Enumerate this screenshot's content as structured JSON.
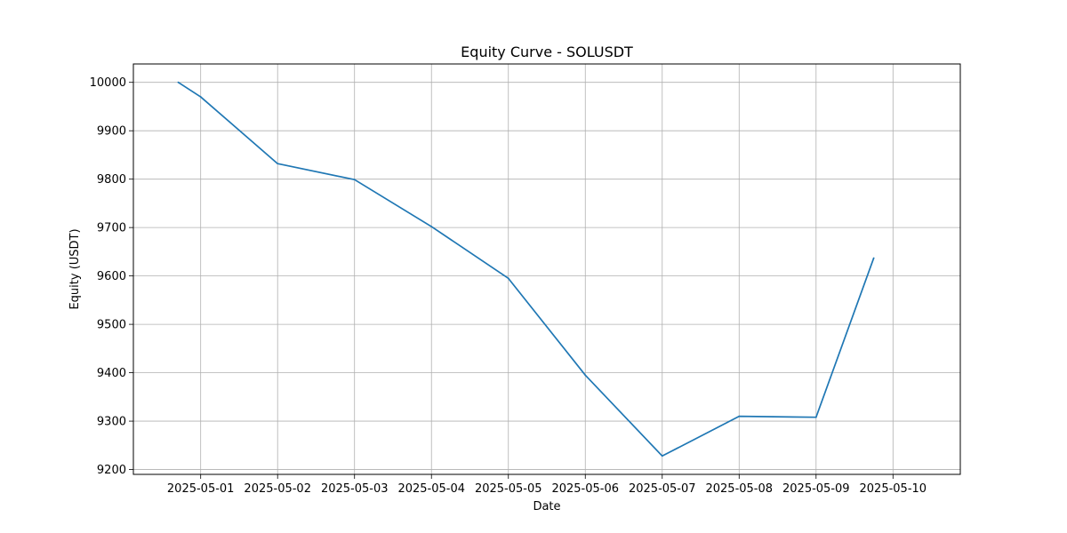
{
  "chart_data": {
    "type": "line",
    "title": "Equity Curve - SOLUSDT",
    "xlabel": "Date",
    "ylabel": "Equity (USDT)",
    "grid": true,
    "x_tick_labels": [
      "2025-05-01",
      "2025-05-02",
      "2025-05-03",
      "2025-05-04",
      "2025-05-05",
      "2025-05-06",
      "2025-05-07",
      "2025-05-08",
      "2025-05-09",
      "2025-05-10"
    ],
    "y_ticks": [
      9200,
      9300,
      9400,
      9500,
      9600,
      9700,
      9800,
      9900,
      10000
    ],
    "xlim": [
      "2025-04-30 03:00",
      "2025-05-10 21:00"
    ],
    "ylim": [
      9190,
      10038
    ],
    "series": [
      {
        "color": "#1f77b4",
        "points": [
          {
            "x": "2025-04-30 17:00",
            "y": 10000
          },
          {
            "x": "2025-05-01 00:00",
            "y": 9970
          },
          {
            "x": "2025-05-02 00:00",
            "y": 9832
          },
          {
            "x": "2025-05-03 00:00",
            "y": 9799
          },
          {
            "x": "2025-05-04 00:00",
            "y": 9702
          },
          {
            "x": "2025-05-05 00:00",
            "y": 9595
          },
          {
            "x": "2025-05-06 00:00",
            "y": 9395
          },
          {
            "x": "2025-05-07 00:00",
            "y": 9228
          },
          {
            "x": "2025-05-08 00:00",
            "y": 9310
          },
          {
            "x": "2025-05-09 00:00",
            "y": 9308
          },
          {
            "x": "2025-05-09 18:00",
            "y": 9637
          }
        ]
      }
    ]
  }
}
